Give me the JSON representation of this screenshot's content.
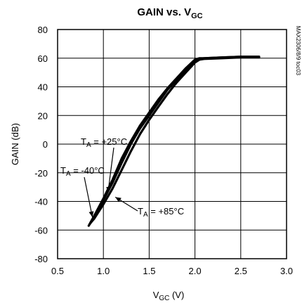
{
  "figure_code": "MAX2306/8/9 toc03",
  "chart_data": {
    "type": "line",
    "title": "GAIN vs. V",
    "title_sub": "GC",
    "xlabel": "V",
    "xlabel_sub": "GC",
    "xlabel_unit": " (V)",
    "ylabel": "GAIN (dB)",
    "xlim": [
      0.5,
      3.0
    ],
    "ylim": [
      -80,
      80
    ],
    "xticks": [
      "0.5",
      "1.0",
      "1.5",
      "2.0",
      "2.5",
      "3.0"
    ],
    "yticks": [
      "-80",
      "-60",
      "-40",
      "-20",
      "0",
      "20",
      "40",
      "60",
      "80"
    ],
    "grid": true,
    "series": [
      {
        "name": "T_A = -40°C",
        "label_main": "T",
        "label_sub": "A",
        "label_rest": " = -40°C",
        "x": [
          0.84,
          0.9,
          1.0,
          1.1,
          1.2,
          1.3,
          1.4,
          1.5,
          1.6,
          1.7,
          1.8,
          1.9,
          2.0,
          2.05,
          2.1,
          2.3,
          2.5,
          2.7
        ],
        "y": [
          -57,
          -50,
          -38,
          -25,
          -10,
          2,
          13,
          22,
          31,
          39,
          46,
          53,
          59,
          60,
          60,
          60.5,
          61,
          61
        ]
      },
      {
        "name": "T_A = +25°C",
        "label_main": "T",
        "label_sub": "A",
        "label_rest": " = +25°C",
        "x": [
          0.85,
          0.9,
          1.0,
          1.1,
          1.2,
          1.3,
          1.4,
          1.5,
          1.6,
          1.7,
          1.8,
          1.9,
          2.0,
          2.05,
          2.1,
          2.3,
          2.5,
          2.7
        ],
        "y": [
          -56,
          -51,
          -39,
          -27,
          -13,
          0,
          11,
          20,
          29,
          38,
          45,
          52,
          58,
          59.5,
          60,
          60.5,
          61,
          61
        ]
      },
      {
        "name": "T_A = +85°C",
        "label_main": "T",
        "label_sub": "A",
        "label_rest": " = +85°C",
        "x": [
          0.86,
          0.9,
          1.0,
          1.1,
          1.2,
          1.3,
          1.4,
          1.5,
          1.6,
          1.7,
          1.8,
          1.9,
          2.0,
          2.05,
          2.1,
          2.3,
          2.5,
          2.7
        ],
        "y": [
          -55,
          -52,
          -42,
          -31,
          -18,
          -5,
          7,
          17,
          26,
          35,
          43,
          50,
          57,
          59,
          59.5,
          60,
          60.5,
          60.5
        ]
      }
    ]
  }
}
